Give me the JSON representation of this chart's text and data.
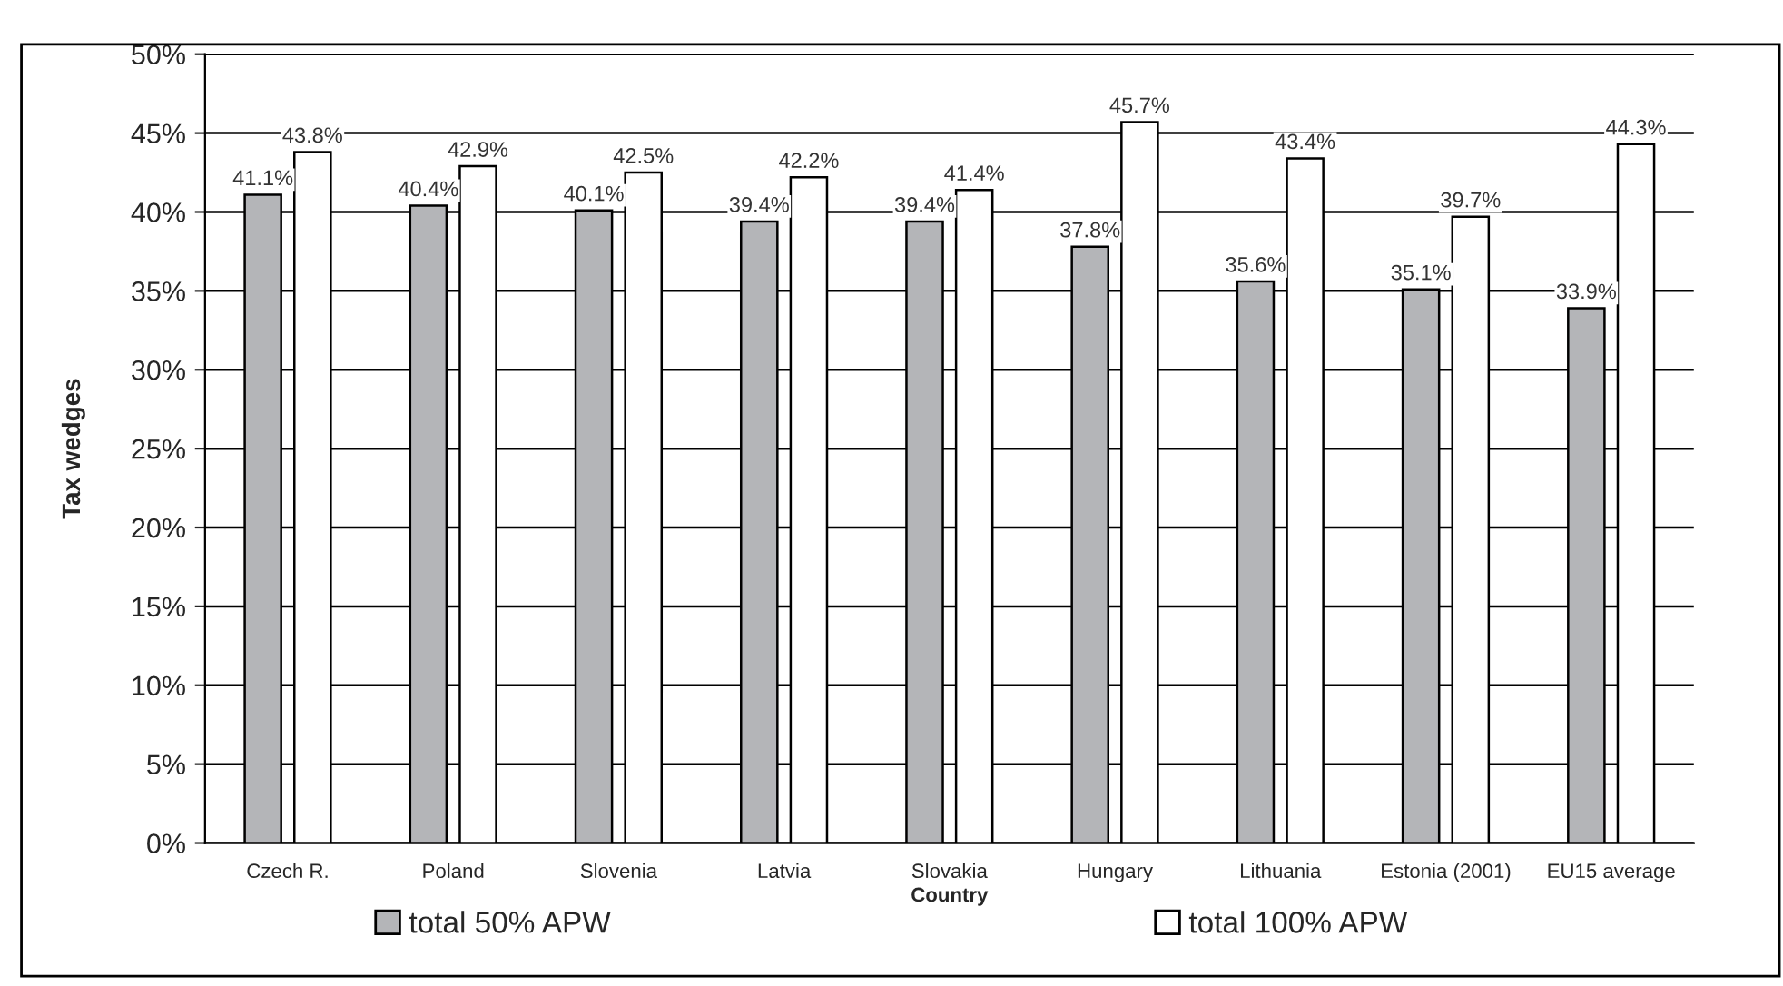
{
  "chart_data": {
    "type": "bar",
    "xlabel": "Country",
    "ylabel": "Tax wedges",
    "categories": [
      "Czech R.",
      "Poland",
      "Slovenia",
      "Latvia",
      "Slovakia",
      "Hungary",
      "Lithuania",
      "Estonia (2001)",
      "EU15 average"
    ],
    "series": [
      {
        "name": "total 50% APW",
        "color": "#b4b5b8",
        "values": [
          41.1,
          40.4,
          40.1,
          39.4,
          39.4,
          37.8,
          35.6,
          35.1,
          33.9
        ],
        "value_labels": [
          "41.1%",
          "40.4%",
          "40.1%",
          "39.4%",
          "39.4%",
          "37.8%",
          "35.6%",
          "35.1%",
          "33.9%"
        ]
      },
      {
        "name": "total 100% APW",
        "color": "#ffffff",
        "values": [
          43.8,
          42.9,
          42.5,
          42.2,
          41.4,
          45.7,
          43.4,
          39.7,
          44.3
        ],
        "value_labels": [
          "43.8%",
          "42.9%",
          "42.5%",
          "42.2%",
          "41.4%",
          "45.7%",
          "43.4%",
          "39.7%",
          "44.3%"
        ]
      }
    ],
    "ylim": [
      0,
      50
    ],
    "yticks": [
      {
        "value": 0,
        "label": "0%"
      },
      {
        "value": 5,
        "label": "5%"
      },
      {
        "value": 10,
        "label": "10%"
      },
      {
        "value": 15,
        "label": "15%"
      },
      {
        "value": 20,
        "label": "20%"
      },
      {
        "value": 25,
        "label": "25%"
      },
      {
        "value": 30,
        "label": "30%"
      },
      {
        "value": 35,
        "label": "35%"
      },
      {
        "value": 40,
        "label": "40%"
      },
      {
        "value": 45,
        "label": "45%"
      },
      {
        "value": 50,
        "label": "50%"
      }
    ],
    "grid": "y",
    "legend": "bottom"
  }
}
